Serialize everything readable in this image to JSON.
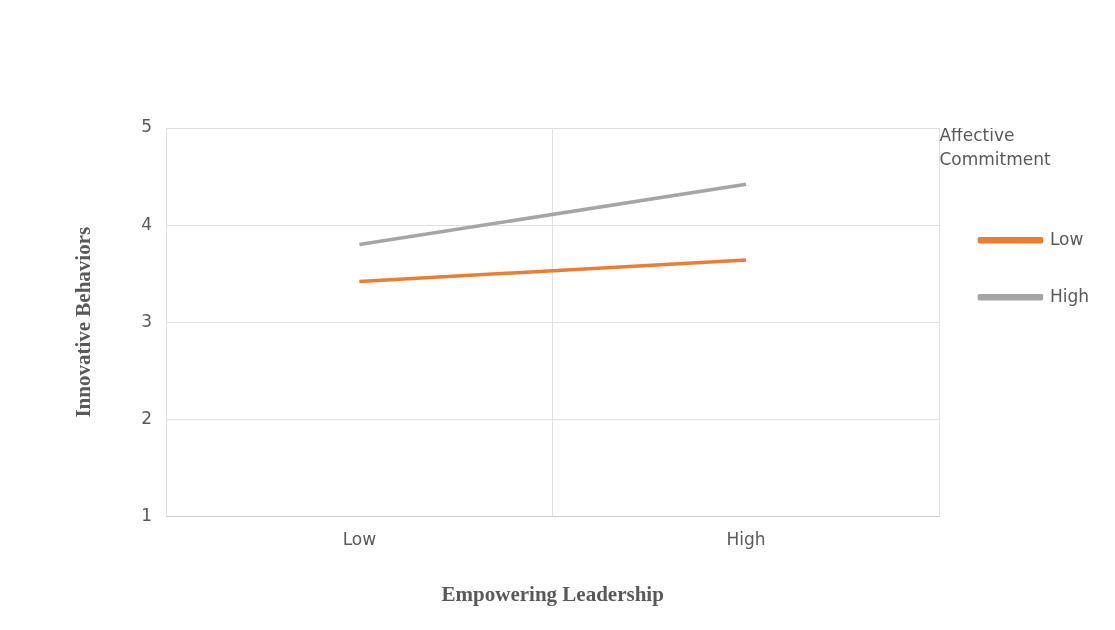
{
  "chart_data": {
    "type": "line",
    "xlabel": "Empowering Leadership",
    "ylabel": "Innovative Behaviors",
    "legend_title": "Affective Commitment",
    "categories": [
      "Low",
      "High"
    ],
    "series": [
      {
        "name": "Low",
        "color": "#ed7d31",
        "values": [
          3.42,
          3.64
        ]
      },
      {
        "name": "High",
        "color": "#a5a5a5",
        "values": [
          3.8,
          4.42
        ]
      }
    ],
    "ylim": [
      1,
      5
    ],
    "yticks": [
      1,
      2,
      3,
      4,
      5
    ],
    "grid": true,
    "legend": "right",
    "marker": "none",
    "line_style": "solid"
  }
}
